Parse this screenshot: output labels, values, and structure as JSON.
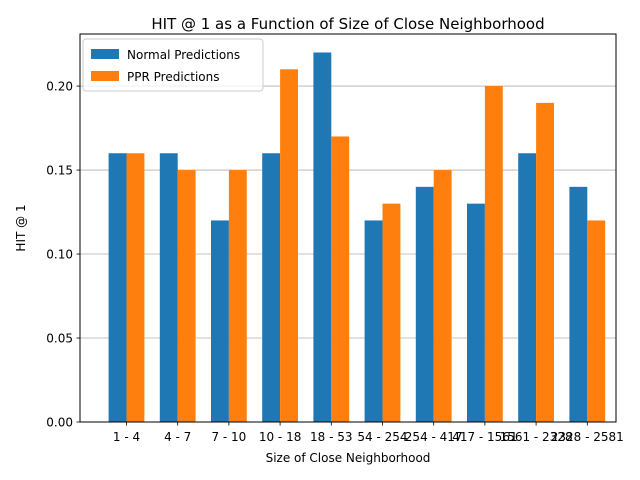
{
  "chart_data": {
    "type": "bar",
    "title": "HIT @ 1 as a Function of Size of Close Neighborhood",
    "xlabel": "Size of Close Neighborhood",
    "ylabel": "HIT @ 1",
    "categories": [
      "1 - 4",
      "4 - 7",
      "7 - 10",
      "10 - 18",
      "18 - 53",
      "54 - 254",
      "254 - 417",
      "417 - 1561",
      "1561 - 2328",
      "2328 - 2581"
    ],
    "series": [
      {
        "name": "Normal Predictions",
        "color": "#1f77b4",
        "values": [
          0.16,
          0.16,
          0.12,
          0.16,
          0.22,
          0.12,
          0.14,
          0.13,
          0.16,
          0.14
        ]
      },
      {
        "name": "PPR Predictions",
        "color": "#ff7f0e",
        "values": [
          0.16,
          0.15,
          0.15,
          0.21,
          0.17,
          0.13,
          0.15,
          0.2,
          0.19,
          0.12
        ]
      }
    ],
    "ylim": [
      0,
      0.231
    ],
    "yticks": [
      0.0,
      0.05,
      0.1,
      0.15,
      0.2
    ],
    "ytick_labels": [
      "0.00",
      "0.05",
      "0.10",
      "0.15",
      "0.20"
    ],
    "grid": "horizontal",
    "legend_position": "top-left"
  }
}
